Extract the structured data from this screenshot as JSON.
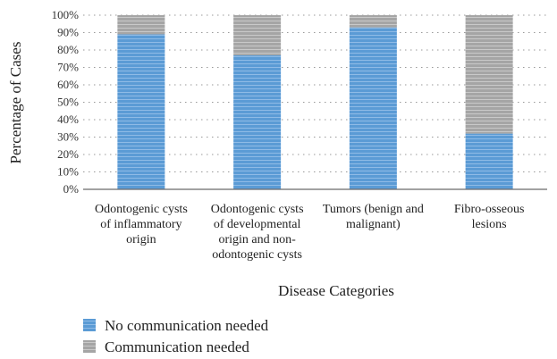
{
  "chart_data": {
    "type": "bar",
    "stacked": true,
    "categories": [
      [
        "Odontogenic cysts",
        "of inflammatory",
        "origin"
      ],
      [
        "Odontogenic cysts",
        "of developmental",
        "origin and non-",
        "odontogenic cysts"
      ],
      [
        "Tumors (benign and",
        "malignant)"
      ],
      [
        "Fibro-osseous",
        "lesions"
      ]
    ],
    "series": [
      {
        "name": "No communication needed",
        "values": [
          89,
          77,
          93,
          32
        ],
        "color": "#5b9bd5"
      },
      {
        "name": "Communication needed",
        "values": [
          11,
          23,
          7,
          68
        ],
        "color": "#a5a5a5"
      }
    ],
    "xlabel": "Disease Categories",
    "ylabel": "Percentage of Cases",
    "ylim": [
      0,
      100
    ],
    "yticks": [
      "0%",
      "10%",
      "20%",
      "30%",
      "40%",
      "50%",
      "60%",
      "70%",
      "80%",
      "90%",
      "100%"
    ],
    "grid": true,
    "legend_position": "bottom-left"
  }
}
